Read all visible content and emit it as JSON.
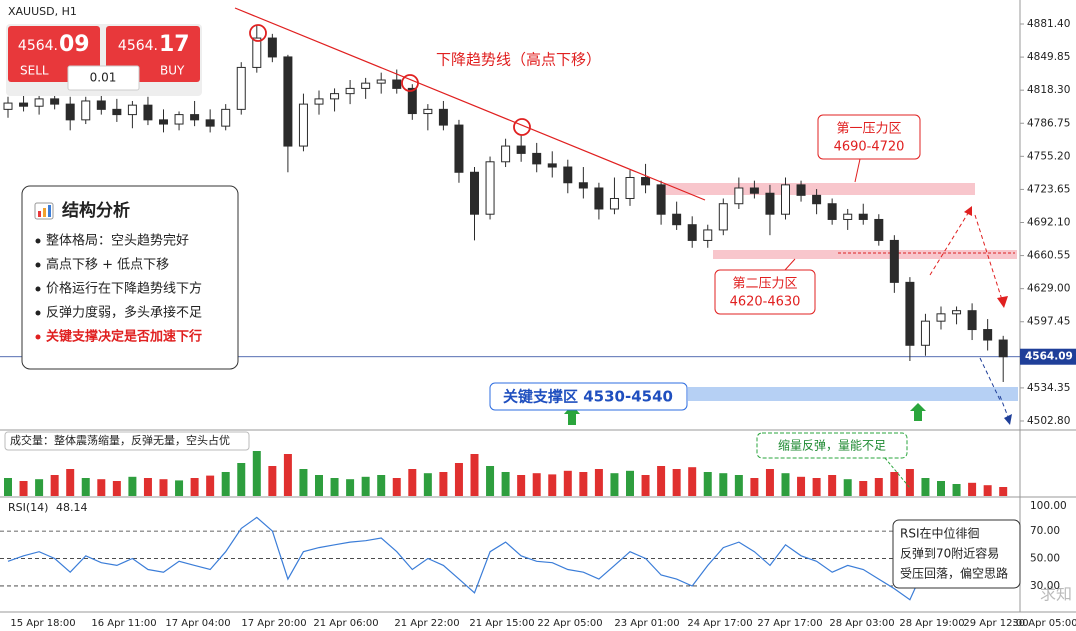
{
  "header": {
    "symbol": "XAUUSD, H1"
  },
  "trade_widget": {
    "sell_main": "4564.",
    "sell_big": "09",
    "sell_label": "SELL",
    "buy_main": "4564.",
    "buy_big": "17",
    "buy_label": "BUY",
    "lot": "0.01"
  },
  "analysis": {
    "title": "结构分析",
    "items": [
      "整体格局：空头趋势完好",
      "高点下移 + 低点下移",
      "价格运行在下降趋势线下方",
      "反弹力度弱，多头承接不足",
      "关键支撑决定是否加速下行"
    ]
  },
  "annotations": {
    "trendline": "下降趋势线（高点下移）",
    "zone1_name": "第一压力区",
    "zone1_range": "4690-4720",
    "zone2_name": "第二压力区",
    "zone2_range": "4620-4630",
    "support": "关键支撑区 4530-4540",
    "volume_note": "缩量反弹，量能不足",
    "rsi_note": [
      "RSI在中位徘徊",
      "反弹到70附近容易",
      "受压回落，偏空思路"
    ]
  },
  "chart_data": {
    "type": "candlestick",
    "up_color": "#ffffff",
    "down_color": "#2b2b2b",
    "candles": [
      [
        4800,
        4812,
        4792,
        4806
      ],
      [
        4806,
        4815,
        4798,
        4803
      ],
      [
        4803,
        4818,
        4795,
        4810
      ],
      [
        4810,
        4822,
        4800,
        4805
      ],
      [
        4805,
        4812,
        4780,
        4790
      ],
      [
        4790,
        4812,
        4786,
        4808
      ],
      [
        4808,
        4816,
        4795,
        4800
      ],
      [
        4800,
        4810,
        4788,
        4795
      ],
      [
        4795,
        4808,
        4782,
        4804
      ],
      [
        4804,
        4812,
        4785,
        4790
      ],
      [
        4790,
        4800,
        4778,
        4786
      ],
      [
        4786,
        4798,
        4780,
        4795
      ],
      [
        4795,
        4808,
        4784,
        4790
      ],
      [
        4790,
        4800,
        4778,
        4784
      ],
      [
        4784,
        4805,
        4780,
        4800
      ],
      [
        4800,
        4845,
        4795,
        4840
      ],
      [
        4840,
        4880,
        4835,
        4868
      ],
      [
        4868,
        4872,
        4845,
        4850
      ],
      [
        4850,
        4852,
        4740,
        4765
      ],
      [
        4765,
        4815,
        4760,
        4805
      ],
      [
        4805,
        4818,
        4795,
        4810
      ],
      [
        4810,
        4820,
        4798,
        4815
      ],
      [
        4815,
        4828,
        4805,
        4820
      ],
      [
        4820,
        4830,
        4810,
        4825
      ],
      [
        4825,
        4835,
        4815,
        4828
      ],
      [
        4828,
        4838,
        4815,
        4820
      ],
      [
        4820,
        4824,
        4790,
        4796
      ],
      [
        4796,
        4805,
        4780,
        4800
      ],
      [
        4800,
        4808,
        4780,
        4785
      ],
      [
        4785,
        4790,
        4730,
        4740
      ],
      [
        4740,
        4745,
        4675,
        4700
      ],
      [
        4700,
        4755,
        4695,
        4750
      ],
      [
        4750,
        4772,
        4745,
        4765
      ],
      [
        4765,
        4775,
        4750,
        4758
      ],
      [
        4758,
        4768,
        4740,
        4748
      ],
      [
        4748,
        4760,
        4735,
        4745
      ],
      [
        4745,
        4752,
        4720,
        4730
      ],
      [
        4730,
        4745,
        4715,
        4725
      ],
      [
        4725,
        4730,
        4695,
        4705
      ],
      [
        4705,
        4735,
        4700,
        4715
      ],
      [
        4715,
        4742,
        4708,
        4735
      ],
      [
        4735,
        4748,
        4720,
        4728
      ],
      [
        4728,
        4732,
        4690,
        4700
      ],
      [
        4700,
        4712,
        4685,
        4690
      ],
      [
        4690,
        4698,
        4668,
        4675
      ],
      [
        4675,
        4690,
        4668,
        4685
      ],
      [
        4685,
        4715,
        4680,
        4710
      ],
      [
        4710,
        4735,
        4705,
        4725
      ],
      [
        4725,
        4732,
        4715,
        4720
      ],
      [
        4720,
        4728,
        4680,
        4700
      ],
      [
        4700,
        4735,
        4695,
        4728
      ],
      [
        4728,
        4732,
        4712,
        4718
      ],
      [
        4718,
        4724,
        4700,
        4710
      ],
      [
        4710,
        4715,
        4690,
        4695
      ],
      [
        4695,
        4705,
        4685,
        4700
      ],
      [
        4700,
        4710,
        4690,
        4695
      ],
      [
        4695,
        4700,
        4670,
        4675
      ],
      [
        4675,
        4680,
        4625,
        4635
      ],
      [
        4635,
        4640,
        4560,
        4575
      ],
      [
        4575,
        4605,
        4565,
        4598
      ],
      [
        4598,
        4612,
        4590,
        4605
      ],
      [
        4605,
        4612,
        4595,
        4608
      ],
      [
        4608,
        4615,
        4580,
        4590
      ],
      [
        4590,
        4600,
        4570,
        4580
      ],
      [
        4580,
        4584,
        4540,
        4564.09
      ]
    ],
    "ylim": [
      4494.2,
      4904.3
    ],
    "yticks": [
      {
        "value": 4881.4,
        "label": "4881.40"
      },
      4849.85,
      {
        "value": 4818.3,
        "label": "4818.30"
      },
      4786.75,
      {
        "value": 4755.2,
        "label": "4755.20"
      },
      4723.65,
      {
        "value": 4692.1,
        "label": "4692.10"
      },
      4660.55,
      {
        "value": 4629,
        "label": "4629.00"
      },
      4597.45,
      4534.35,
      {
        "value": 4502.8,
        "label": "4502.80"
      }
    ],
    "current_price": 4564.09,
    "current_color": "#1f3f99",
    "x_labels": [
      "15 Apr 18:00",
      "16 Apr 11:00",
      "17 Apr 04:00",
      "17 Apr 20:00",
      "21 Apr 06:00",
      "21 Apr 22:00",
      "21 Apr 15:00",
      "22 Apr 05:00",
      "23 Apr 01:00",
      "24 Apr 17:00",
      "27 Apr 17:00",
      "28 Apr 03:00",
      "28 Apr 19:00",
      "29 Apr 12:00",
      "30 Apr 05:00"
    ],
    "volume": {
      "title": "成交量：整体震荡缩量，反弹无量，空头占优",
      "up_color": "#2e9e3e",
      "down_color": "#e0302f",
      "values": [
        30,
        25,
        28,
        35,
        45,
        30,
        28,
        25,
        32,
        30,
        28,
        26,
        30,
        34,
        40,
        55,
        75,
        50,
        70,
        45,
        35,
        30,
        28,
        32,
        35,
        30,
        45,
        38,
        40,
        55,
        70,
        50,
        40,
        35,
        38,
        36,
        42,
        40,
        45,
        38,
        42,
        35,
        50,
        45,
        48,
        40,
        38,
        35,
        30,
        45,
        38,
        32,
        30,
        35,
        28,
        25,
        30,
        40,
        45,
        30,
        25,
        20,
        22,
        18,
        15
      ]
    },
    "rsi": {
      "label": "RSI(14)",
      "value": 48.14,
      "color": "#3b7dd8",
      "ylim": [
        11,
        100
      ],
      "yticks": [
        {
          "value": 100,
          "label": "100.00"
        },
        {
          "value": 70,
          "label": "70.00"
        },
        {
          "value": 50,
          "label": "50.00"
        },
        {
          "value": 30,
          "label": "30.00"
        }
      ],
      "values": [
        48,
        52,
        55,
        50,
        40,
        52,
        47,
        45,
        50,
        42,
        40,
        48,
        45,
        42,
        55,
        72,
        80,
        70,
        35,
        55,
        58,
        60,
        62,
        63,
        65,
        55,
        42,
        50,
        45,
        35,
        25,
        55,
        62,
        52,
        48,
        47,
        42,
        40,
        35,
        45,
        55,
        50,
        38,
        35,
        30,
        45,
        58,
        62,
        55,
        45,
        60,
        52,
        48,
        40,
        45,
        42,
        35,
        28,
        20,
        45,
        55,
        58,
        45,
        40,
        48.14
      ]
    }
  }
}
